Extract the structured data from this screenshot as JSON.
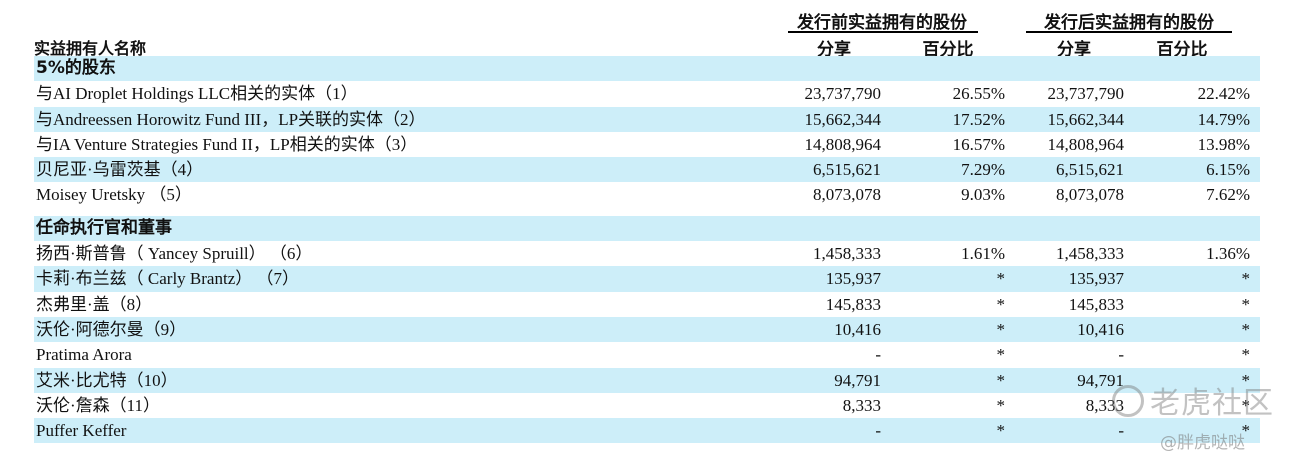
{
  "header": {
    "owner_col": "实益拥有人名称",
    "pre_group": "发行前实益拥有的股份",
    "post_group": "发行后实益拥有的股份",
    "shares": "分享",
    "percent": "百分比"
  },
  "sections": [
    {
      "title": "5%的股东",
      "rows": [
        {
          "name": "与AI Droplet Holdings LLC相关的实体（1）",
          "pre_shares": "23,737,790",
          "pre_pct": "26.55%",
          "post_shares": "23,737,790",
          "post_pct": "22.42%"
        },
        {
          "name": "与Andreessen Horowitz Fund III，LP关联的实体（2）",
          "pre_shares": "15,662,344",
          "pre_pct": "17.52%",
          "post_shares": "15,662,344",
          "post_pct": "14.79%"
        },
        {
          "name": "与IA Venture Strategies Fund II，LP相关的实体（3）",
          "pre_shares": "14,808,964",
          "pre_pct": "16.57%",
          "post_shares": "14,808,964",
          "post_pct": "13.98%"
        },
        {
          "name": "贝尼亚·乌雷茨基（4）",
          "pre_shares": "6,515,621",
          "pre_pct": "7.29%",
          "post_shares": "6,515,621",
          "post_pct": "6.15%"
        },
        {
          "name": "Moisey Uretsky （5）",
          "pre_shares": "8,073,078",
          "pre_pct": "9.03%",
          "post_shares": "8,073,078",
          "post_pct": "7.62%"
        }
      ]
    },
    {
      "title": "任命执行官和董事",
      "rows": [
        {
          "name": "扬西·斯普鲁（ Yancey Spruill） （6）",
          "pre_shares": "1,458,333",
          "pre_pct": "1.61%",
          "post_shares": "1,458,333",
          "post_pct": "1.36%"
        },
        {
          "name": "卡莉·布兰兹（ Carly Brantz） （7）",
          "pre_shares": "135,937",
          "pre_pct": "*",
          "post_shares": "135,937",
          "post_pct": "*"
        },
        {
          "name": "杰弗里·盖（8）",
          "pre_shares": "145,833",
          "pre_pct": "*",
          "post_shares": "145,833",
          "post_pct": "*"
        },
        {
          "name": "沃伦·阿德尔曼（9）",
          "pre_shares": "10,416",
          "pre_pct": "*",
          "post_shares": "10,416",
          "post_pct": "*"
        },
        {
          "name": "Pratima Arora",
          "pre_shares": "-",
          "pre_pct": "*",
          "post_shares": "-",
          "post_pct": "*"
        },
        {
          "name": "艾米·比尤特（10）",
          "pre_shares": "94,791",
          "pre_pct": "*",
          "post_shares": "94,791",
          "post_pct": "*"
        },
        {
          "name": "沃伦·詹森（11）",
          "pre_shares": "8,333",
          "pre_pct": "*",
          "post_shares": "8,333",
          "post_pct": "*"
        },
        {
          "name": "Puffer Keffer",
          "pre_shares": "-",
          "pre_pct": "*",
          "post_shares": "-",
          "post_pct": "*"
        }
      ]
    }
  ],
  "watermark": {
    "brand": "老虎社区",
    "user": "@胖虎哒哒"
  }
}
